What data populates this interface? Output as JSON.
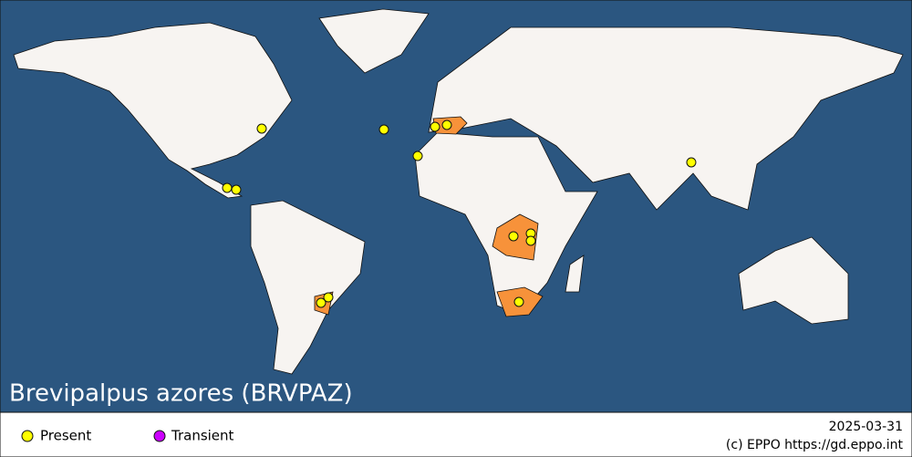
{
  "title": "Brevipalpus azores (BRVPAZ)",
  "legend": [
    {
      "label": "Present"
    },
    {
      "label": "Transient"
    }
  ],
  "date": "2025-03-31",
  "credit": "(c) EPPO https://gd.eppo.int"
}
